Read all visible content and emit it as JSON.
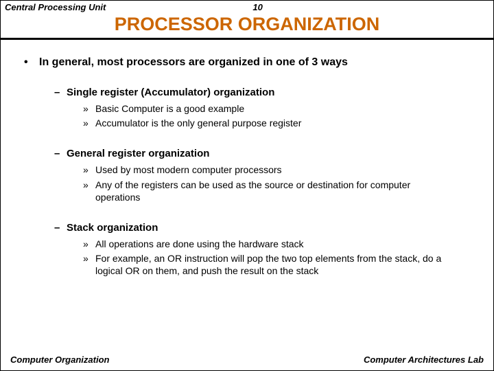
{
  "header": {
    "left": "Central Processing Unit",
    "page": "10"
  },
  "title": "PROCESSOR ORGANIZATION",
  "main": {
    "intro": "In general, most processors are organized in one of 3 ways",
    "sections": [
      {
        "heading": "Single register (Accumulator) organization",
        "items": [
          "Basic Computer is a good example",
          "Accumulator is the only general purpose register"
        ]
      },
      {
        "heading": "General register organization",
        "items": [
          "Used by most modern computer processors",
          "Any of the registers can be used as the source or destination for computer operations"
        ]
      },
      {
        "heading": "Stack organization",
        "items": [
          "All operations are done using the hardware stack",
          "For example, an OR instruction will pop the two top elements from the stack, do a logical OR on them, and push the result on the stack"
        ]
      }
    ]
  },
  "footer": {
    "left": "Computer Organization",
    "right": "Computer Architectures Lab"
  },
  "colors": {
    "title_color": "#cc6600",
    "text_color": "#000000",
    "background": "#ffffff"
  }
}
